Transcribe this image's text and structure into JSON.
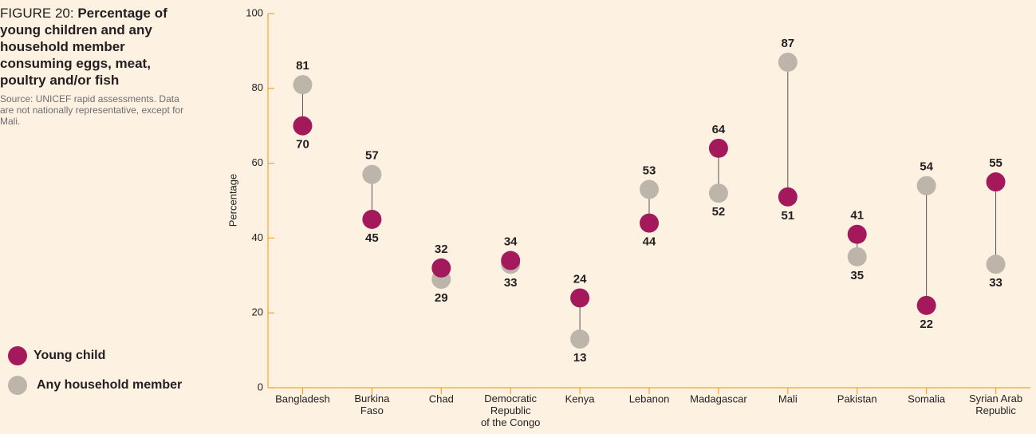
{
  "chart_data": {
    "type": "dumbbell",
    "title_label": "FIGURE 20:",
    "title": "Percentage of young children and any household member consuming eggs, meat, poultry and/or fish",
    "source": "Source: UNICEF rapid assessments. Data are not nationally representative, except for Mali.",
    "y_label": "Percentage",
    "categories": [
      "Bangladesh",
      "Burkina\nFaso",
      "Chad",
      "Democratic\nRepublic\nof the Congo",
      "Kenya",
      "Lebanon",
      "Madagascar",
      "Mali",
      "Pakistan",
      "Somalia",
      "Syrian Arab\nRepublic"
    ],
    "series": [
      {
        "name": "Young child",
        "color": "#a3195b",
        "values": [
          70,
          45,
          32,
          34,
          24,
          44,
          64,
          51,
          41,
          22,
          55
        ]
      },
      {
        "name": "Any household member",
        "color": "#bdb4aa",
        "values": [
          81,
          57,
          29,
          33,
          13,
          53,
          52,
          87,
          35,
          54,
          33
        ]
      }
    ],
    "ylim": [
      0,
      100
    ],
    "yticks": [
      0,
      20,
      40,
      60,
      80,
      100
    ],
    "axis_color": "#f5a623",
    "legend": "left"
  }
}
